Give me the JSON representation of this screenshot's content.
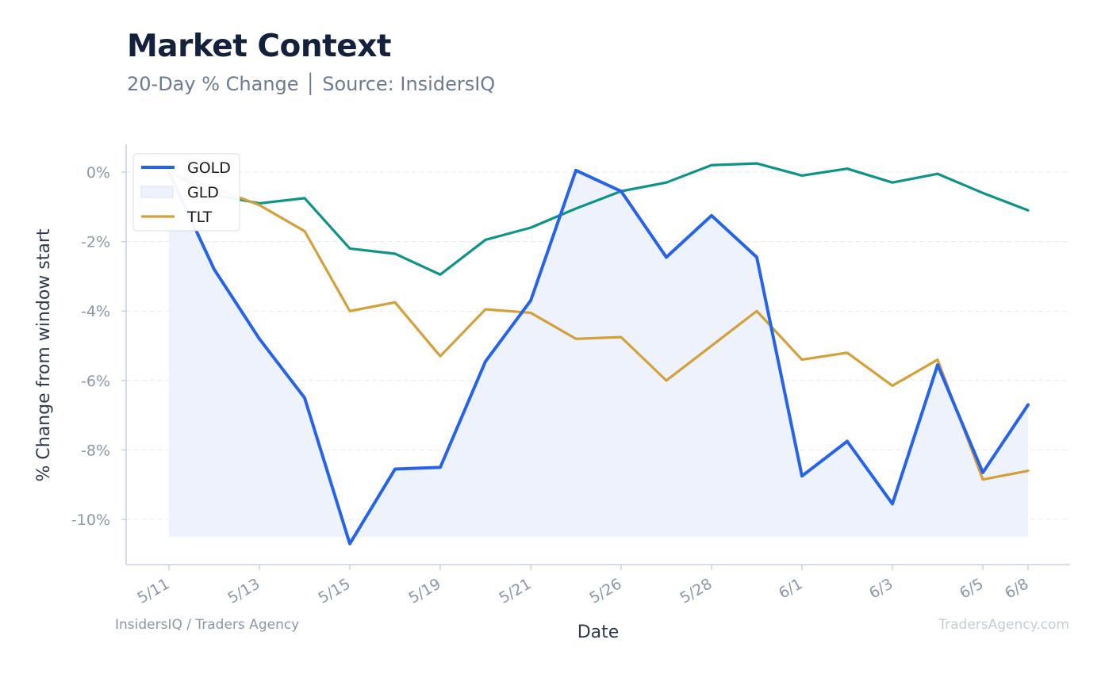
{
  "header": {
    "title": "Market Context",
    "subtitle": "20-Day % Change │ Source: InsidersIQ"
  },
  "footer": {
    "left": "InsidersIQ / Traders Agency",
    "right": "TradersAgency.com"
  },
  "chart_data": {
    "type": "line",
    "xlabel": "Date",
    "ylabel": "% Change from window start",
    "ylim": [
      -11.3,
      0.8
    ],
    "yticks": [
      0,
      -2,
      -4,
      -6,
      -8,
      -10
    ],
    "ytick_labels": [
      "0%",
      "-2%",
      "-4%",
      "-6%",
      "-8%",
      "-10%"
    ],
    "x": [
      0,
      1,
      2,
      3,
      4,
      5,
      6,
      7,
      8,
      9,
      10,
      11,
      12,
      13,
      14,
      15,
      16,
      17,
      18,
      19
    ],
    "xticks": [
      0,
      2,
      4,
      6,
      8,
      10,
      12,
      14,
      16,
      18,
      19
    ],
    "xtick_labels": [
      "5/11",
      "5/13",
      "5/15",
      "5/19",
      "5/21",
      "5/26",
      "5/28",
      "6/1",
      "6/3",
      "6/5",
      "6/8"
    ],
    "grid": true,
    "legend_position": "top-left",
    "fill_baseline": -10.5,
    "series": [
      {
        "name": "GOLD",
        "color": "#2563eb",
        "values": [
          0,
          -2.8,
          -4.8,
          -6.5,
          -10.7,
          -8.55,
          -8.5,
          -5.45,
          -3.7,
          0.05,
          -0.55,
          -2.45,
          -1.25,
          -2.45,
          -8.75,
          -7.75,
          -9.55,
          -5.55,
          -8.65,
          -6.7
        ]
      },
      {
        "name": "GLD",
        "color": "#0d9488",
        "fill": "#eef2fc",
        "values": [
          0,
          -0.65,
          -0.9,
          -0.75,
          -2.2,
          -2.35,
          -2.95,
          -1.95,
          -1.6,
          -1.05,
          -0.55,
          -0.3,
          0.2,
          0.25,
          -0.1,
          0.1,
          -0.3,
          -0.05,
          -0.6,
          -1.1
        ]
      },
      {
        "name": "TLT",
        "color": "#d4a03a",
        "values": [
          0,
          -0.45,
          -0.95,
          -1.7,
          -4.0,
          -3.75,
          -5.3,
          -3.95,
          -4.05,
          -4.8,
          -4.75,
          -6.0,
          -5.0,
          -4.0,
          -5.4,
          -5.2,
          -6.15,
          -5.4,
          -8.85,
          -8.6
        ]
      }
    ]
  }
}
